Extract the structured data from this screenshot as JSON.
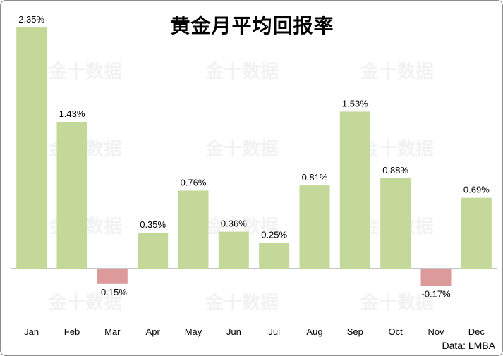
{
  "watermark": "金十数据",
  "source": "Data: LMBA",
  "chart_data": {
    "type": "bar",
    "title": "黄金月平均回报率",
    "categories": [
      "Jan",
      "Feb",
      "Mar",
      "Apr",
      "May",
      "Jun",
      "Jul",
      "Aug",
      "Sep",
      "Oct",
      "Nov",
      "Dec"
    ],
    "values": [
      2.35,
      1.43,
      -0.15,
      0.35,
      0.76,
      0.36,
      0.25,
      0.81,
      1.53,
      0.88,
      -0.17,
      0.69
    ],
    "data_labels": [
      "2.35%",
      "1.43%",
      "-0.15%",
      "0.35%",
      "0.76%",
      "0.36%",
      "0.25%",
      "0.81%",
      "1.53%",
      "0.88%",
      "-0.17%",
      "0.69%"
    ],
    "ylim": [
      -0.2,
      2.4
    ],
    "grid": false,
    "colors": {
      "positive": "#c4d89a",
      "negative": "#dc9a9a",
      "axis": "#8c8c8c"
    }
  }
}
